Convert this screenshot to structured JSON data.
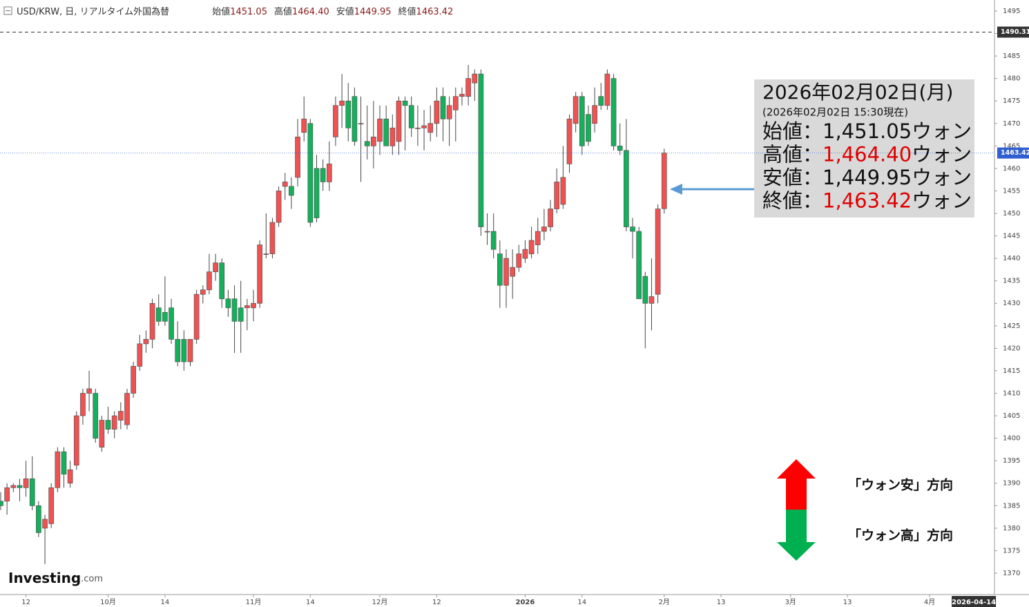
{
  "chart_data": {
    "type": "candlestick",
    "title": "USD/KRW, 日, リアルタイム外国為替",
    "ohlc_legend": [
      {
        "name": "始値",
        "value": "1451.05"
      },
      {
        "name": "高値",
        "value": "1464.40"
      },
      {
        "name": "安値",
        "value": "1449.95"
      },
      {
        "name": "終値",
        "value": "1463.42"
      }
    ],
    "categories": [
      null,
      null,
      null,
      null,
      "12",
      null,
      null,
      null,
      null,
      null,
      null,
      null,
      null,
      null,
      null,
      null,
      null,
      "10月",
      null,
      null,
      null,
      null,
      null,
      null,
      null,
      null,
      "14",
      null,
      null,
      null,
      null,
      null,
      null,
      null,
      null,
      null,
      null,
      null,
      null,
      null,
      "11月",
      null,
      null,
      null,
      null,
      null,
      null,
      null,
      null,
      "14",
      null,
      null,
      null,
      null,
      null,
      null,
      null,
      null,
      null,
      null,
      "12月",
      null,
      null,
      null,
      null,
      null,
      null,
      null,
      null,
      "12",
      null,
      null,
      null,
      null,
      null,
      null,
      null,
      null,
      null,
      null,
      null,
      null,
      null,
      "2026",
      null,
      null,
      null,
      null,
      null,
      null,
      null,
      null,
      "14",
      null,
      null,
      null,
      null,
      null,
      null,
      null,
      null,
      null,
      null,
      null,
      null,
      "2月",
      null,
      null,
      null,
      null,
      null,
      null,
      null,
      null,
      "13",
      null,
      null,
      null,
      null,
      null,
      null,
      null,
      null,
      null,
      null,
      "3月",
      null,
      null,
      null,
      null,
      null,
      null,
      null,
      null,
      "13",
      null,
      null,
      null,
      null,
      null,
      null,
      null,
      null,
      null,
      null,
      null,
      null,
      "4月",
      null,
      null,
      null,
      null,
      null,
      null,
      "2026-04-14"
    ],
    "ohlc": [
      [
        1386,
        1388,
        1384,
        1385
      ],
      [
        1386,
        1390,
        1383,
        1389
      ],
      [
        1389,
        1390,
        1388,
        1389.5
      ],
      [
        1389.5,
        1391,
        1386,
        1389
      ],
      [
        1389,
        1395,
        1387,
        1391
      ],
      [
        1391,
        1396,
        1384,
        1385
      ],
      [
        1385,
        1386,
        1378,
        1379
      ],
      [
        1380,
        1383,
        1372,
        1382
      ],
      [
        1381,
        1390,
        1380,
        1389
      ],
      [
        1389,
        1398,
        1388,
        1397
      ],
      [
        1397,
        1398,
        1389,
        1392
      ],
      [
        1390,
        1395,
        1389,
        1393
      ],
      [
        1394,
        1406,
        1393,
        1405
      ],
      [
        1405,
        1411,
        1403,
        1410
      ],
      [
        1410,
        1415,
        1406,
        1411
      ],
      [
        1410,
        1411,
        1399,
        1400
      ],
      [
        1398,
        1405,
        1397,
        1404
      ],
      [
        1404,
        1407,
        1401,
        1402
      ],
      [
        1402,
        1406,
        1400,
        1405
      ],
      [
        1404,
        1408,
        1402,
        1406
      ],
      [
        1403,
        1411,
        1402,
        1410
      ],
      [
        1410,
        1417,
        1409,
        1416
      ],
      [
        1416,
        1423,
        1415,
        1421
      ],
      [
        1421,
        1424,
        1419,
        1422
      ],
      [
        1422,
        1431,
        1420,
        1430
      ],
      [
        1429,
        1432,
        1425,
        1426
      ],
      [
        1428,
        1436,
        1425,
        1426
      ],
      [
        1429,
        1431,
        1421,
        1422
      ],
      [
        1422,
        1426,
        1416,
        1417
      ],
      [
        1422,
        1424,
        1415,
        1417
      ],
      [
        1417,
        1422,
        1416,
        1422
      ],
      [
        1422,
        1433,
        1421,
        1432
      ],
      [
        1432,
        1434,
        1430,
        1433
      ],
      [
        1433,
        1441,
        1432,
        1437
      ],
      [
        1437,
        1441,
        1435,
        1439
      ],
      [
        1439,
        1440,
        1429,
        1431
      ],
      [
        1431,
        1433,
        1427,
        1429
      ],
      [
        1431,
        1434,
        1419,
        1426
      ],
      [
        1429,
        1435,
        1419,
        1426
      ],
      [
        1429,
        1431,
        1424,
        1429.5
      ],
      [
        1429,
        1433,
        1426,
        1430
      ],
      [
        1430,
        1444,
        1429,
        1443
      ],
      [
        1441,
        1450,
        1440,
        1441
      ],
      [
        1441,
        1449,
        1440,
        1448
      ],
      [
        1448,
        1456,
        1447,
        1455
      ],
      [
        1456,
        1459,
        1453,
        1457
      ],
      [
        1456,
        1458,
        1451,
        1454
      ],
      [
        1458,
        1471,
        1456,
        1467
      ],
      [
        1468,
        1476,
        1466,
        1471
      ],
      [
        1470,
        1471,
        1447,
        1448
      ],
      [
        1460,
        1463,
        1448,
        1449
      ],
      [
        1460,
        1462,
        1455,
        1457
      ],
      [
        1457,
        1466,
        1455,
        1461
      ],
      [
        1467,
        1476,
        1465,
        1474
      ],
      [
        1474,
        1481,
        1469,
        1475
      ],
      [
        1475,
        1479,
        1466,
        1469
      ],
      [
        1476,
        1478,
        1465,
        1466
      ],
      [
        1470,
        1476,
        1457,
        1470
      ],
      [
        1466,
        1474,
        1462,
        1465
      ],
      [
        1465,
        1475,
        1460,
        1467
      ],
      [
        1466,
        1474,
        1463,
        1471
      ],
      [
        1471,
        1474,
        1465,
        1465
      ],
      [
        1465,
        1472,
        1463,
        1469
      ],
      [
        1466,
        1476,
        1463,
        1475
      ],
      [
        1475,
        1476,
        1464,
        1474
      ],
      [
        1474,
        1476,
        1467,
        1469
      ],
      [
        1469,
        1474,
        1465,
        1469
      ],
      [
        1469,
        1473,
        1464,
        1469.5
      ],
      [
        1468,
        1474,
        1466,
        1470
      ],
      [
        1470,
        1478,
        1467,
        1475
      ],
      [
        1476,
        1478,
        1466,
        1471
      ],
      [
        1471,
        1476,
        1465,
        1474
      ],
      [
        1473,
        1478,
        1466,
        1476
      ],
      [
        1476,
        1478,
        1474,
        1476.5
      ],
      [
        1476,
        1483,
        1474,
        1480
      ],
      [
        1479,
        1482,
        1475,
        1481
      ],
      [
        1481,
        1482,
        1445,
        1447
      ],
      [
        1446,
        1450,
        1443,
        1446
      ],
      [
        1446,
        1450,
        1440,
        1442
      ],
      [
        1441,
        1444,
        1429,
        1434
      ],
      [
        1434,
        1442,
        1429,
        1440
      ],
      [
        1436,
        1442,
        1431,
        1438
      ],
      [
        1438,
        1443,
        1437,
        1441
      ],
      [
        1440,
        1444,
        1439,
        1442
      ],
      [
        1441,
        1447,
        1440,
        1444
      ],
      [
        1443,
        1449,
        1441,
        1446
      ],
      [
        1446,
        1451,
        1444,
        1447
      ],
      [
        1447,
        1453,
        1446,
        1451
      ],
      [
        1451,
        1460,
        1450,
        1457
      ],
      [
        1452,
        1465,
        1451,
        1458
      ],
      [
        1461,
        1472,
        1459,
        1471
      ],
      [
        1470,
        1477,
        1468,
        1476
      ],
      [
        1476,
        1477,
        1463,
        1465
      ],
      [
        1472,
        1474,
        1465,
        1466
      ],
      [
        1470,
        1478,
        1468,
        1474
      ],
      [
        1476,
        1479,
        1473,
        1474
      ],
      [
        1474,
        1482,
        1473,
        1481
      ],
      [
        1480,
        1481,
        1464,
        1465
      ],
      [
        1465,
        1470,
        1463,
        1464
      ],
      [
        1464,
        1471,
        1446,
        1447
      ],
      [
        1447,
        1449,
        1440,
        1446
      ],
      [
        1446,
        1447,
        1431,
        1431
      ],
      [
        1436,
        1437,
        1420,
        1430
      ],
      [
        1430,
        1440,
        1424,
        1431.5
      ],
      [
        1432,
        1452,
        1430,
        1451
      ],
      [
        1451.05,
        1464.4,
        1449.95,
        1463.42
      ],
      null,
      null,
      null,
      null,
      null,
      null,
      null,
      null,
      null,
      null,
      null,
      null,
      null,
      null,
      null,
      null,
      null,
      null,
      null,
      null,
      null,
      null,
      null,
      null,
      null,
      null,
      null,
      null,
      null,
      null,
      null,
      null,
      null,
      null,
      null,
      null,
      null,
      null,
      null,
      null,
      null,
      null,
      null,
      null,
      null,
      null,
      null,
      null,
      null
    ],
    "colors": {
      "up": "#f05252",
      "down": "#14b05c"
    },
    "ylim": [
      1365.39,
      1497.45
    ],
    "yticks": [
      1370,
      1375,
      1380,
      1385,
      1390,
      1395,
      1400,
      1405,
      1410,
      1415,
      1420,
      1425,
      1430,
      1435,
      1440,
      1445,
      1450,
      1455,
      1460,
      1465,
      1470,
      1475,
      1480,
      1485,
      1490,
      1495
    ],
    "levels": [
      {
        "value": 1490.31,
        "color": "#333333",
        "style": "dashed"
      },
      {
        "value": 1463.42,
        "color": "#2f5fd0",
        "style": "dotted"
      }
    ],
    "annotation": {
      "date": "2026年02月02日(月)",
      "note": "(2026年02月02日 15:30現在)",
      "rows": [
        {
          "name": "始値：",
          "value": "1,451.05",
          "unit": "ウォン",
          "color": "#111111"
        },
        {
          "name": "高値：",
          "value": "1,464.40",
          "unit": "ウォン",
          "color": "#e00000"
        },
        {
          "name": "安値：",
          "value": "1,449.95",
          "unit": "ウォン",
          "color": "#111111"
        },
        {
          "name": "終値：",
          "value": "1,463.42",
          "unit": "ウォン",
          "color": "#e00000"
        }
      ]
    },
    "direction_labels": [
      "「ウォン安」方向",
      "「ウォン高」方向"
    ],
    "brand": {
      "name": "Investing",
      "suffix": ".com"
    }
  }
}
